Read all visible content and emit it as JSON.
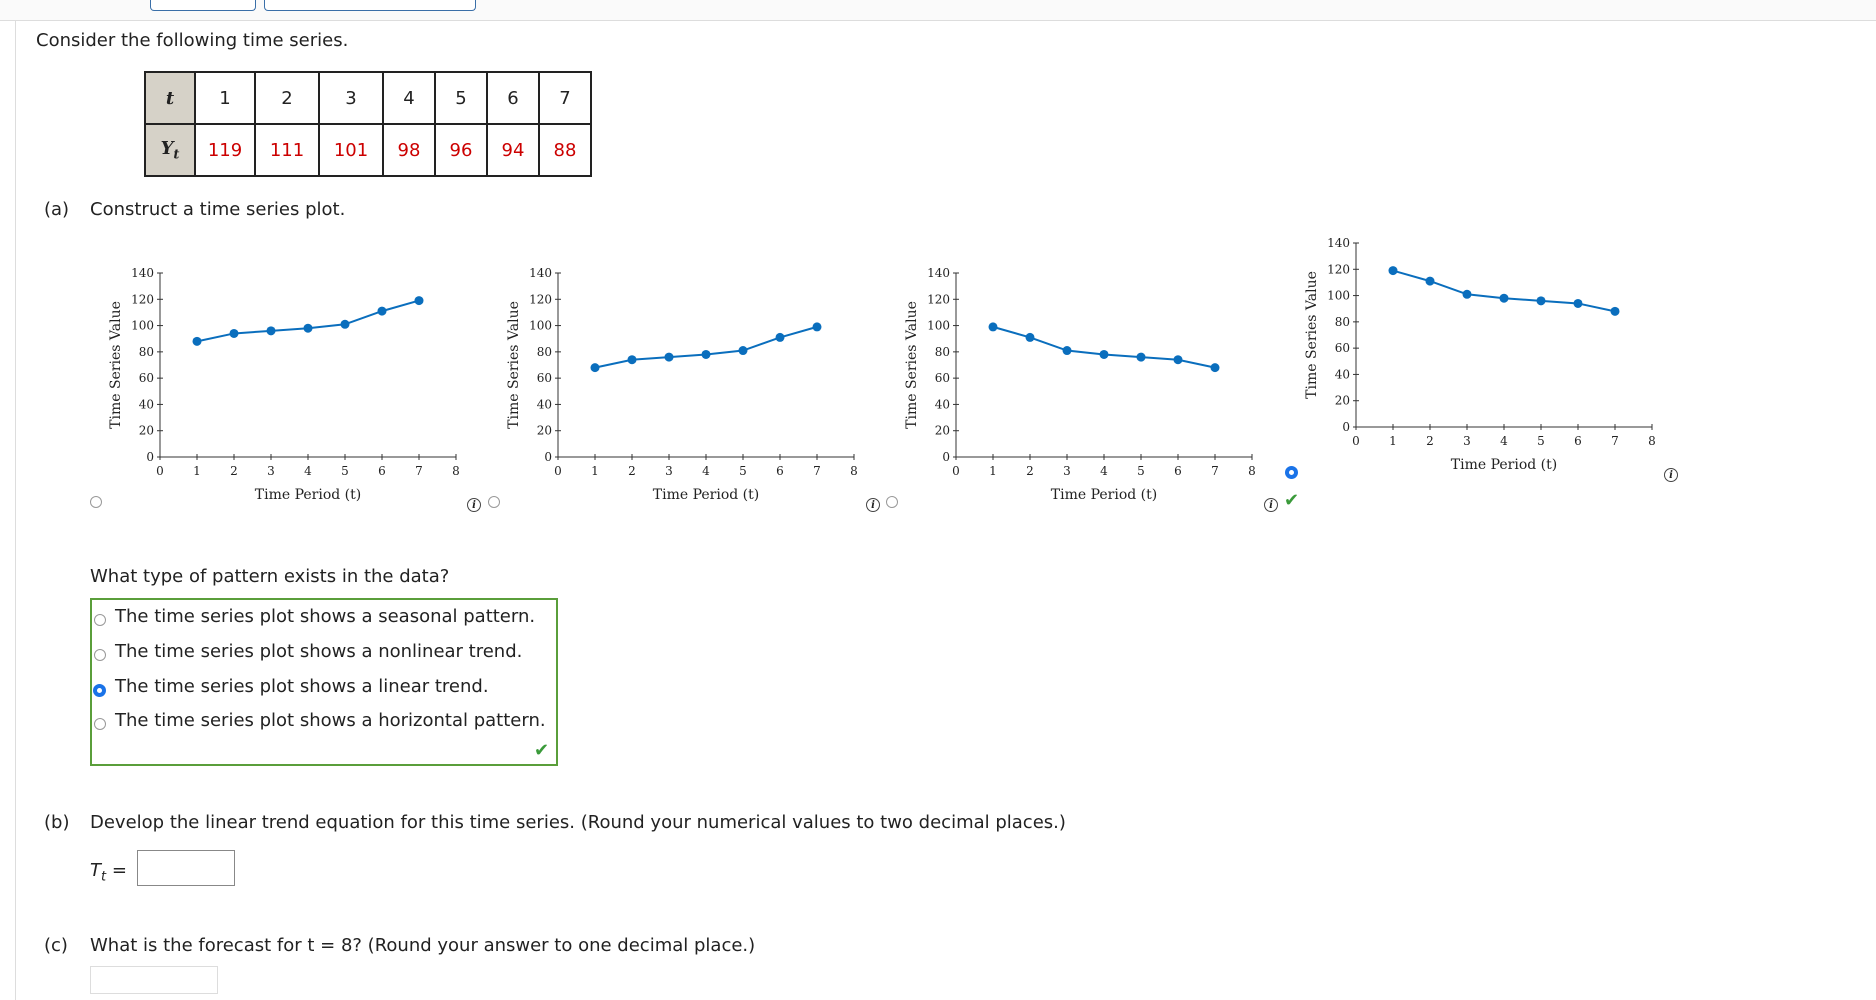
{
  "intro": "Consider the following time series.",
  "table": {
    "t_label": "t",
    "y_label": "Y",
    "y_sub": "t",
    "t_values": [
      "1",
      "2",
      "3",
      "4",
      "5",
      "6",
      "7"
    ],
    "y_values": [
      "119",
      "111",
      "101",
      "98",
      "96",
      "94",
      "88"
    ]
  },
  "part_a": {
    "letter": "(a)",
    "text": "Construct a time series plot."
  },
  "chart_data": [
    {
      "type": "line",
      "x": [
        1,
        2,
        3,
        4,
        5,
        6,
        7
      ],
      "values": [
        88,
        94,
        96,
        98,
        101,
        111,
        119
      ],
      "xlim": [
        0,
        8
      ],
      "ylim": [
        0,
        140
      ],
      "xticks": [
        0,
        1,
        2,
        3,
        4,
        5,
        6,
        7,
        8
      ],
      "yticks": [
        0,
        20,
        40,
        60,
        80,
        100,
        120,
        140
      ],
      "xlabel": "Time Period (t)",
      "ylabel": "Time Series Value",
      "selected": false
    },
    {
      "type": "line",
      "x": [
        1,
        2,
        3,
        4,
        5,
        6,
        7
      ],
      "values": [
        68,
        74,
        76,
        78,
        81,
        91,
        99
      ],
      "xlim": [
        0,
        8
      ],
      "ylim": [
        0,
        140
      ],
      "xticks": [
        0,
        1,
        2,
        3,
        4,
        5,
        6,
        7,
        8
      ],
      "yticks": [
        0,
        20,
        40,
        60,
        80,
        100,
        120,
        140
      ],
      "xlabel": "Time Period (t)",
      "ylabel": "Time Series Value",
      "selected": false
    },
    {
      "type": "line",
      "x": [
        1,
        2,
        3,
        4,
        5,
        6,
        7
      ],
      "values": [
        99,
        91,
        81,
        78,
        76,
        74,
        68
      ],
      "xlim": [
        0,
        8
      ],
      "ylim": [
        0,
        140
      ],
      "xticks": [
        0,
        1,
        2,
        3,
        4,
        5,
        6,
        7,
        8
      ],
      "yticks": [
        0,
        20,
        40,
        60,
        80,
        100,
        120,
        140
      ],
      "xlabel": "Time Period (t)",
      "ylabel": "Time Series Value",
      "selected": false
    },
    {
      "type": "line",
      "x": [
        1,
        2,
        3,
        4,
        5,
        6,
        7
      ],
      "values": [
        119,
        111,
        101,
        98,
        96,
        94,
        88
      ],
      "xlim": [
        0,
        8
      ],
      "ylim": [
        0,
        140
      ],
      "xticks": [
        0,
        1,
        2,
        3,
        4,
        5,
        6,
        7,
        8
      ],
      "yticks": [
        0,
        20,
        40,
        60,
        80,
        100,
        120,
        140
      ],
      "xlabel": "Time Period (t)",
      "ylabel": "Time Series Value",
      "selected": true
    }
  ],
  "pattern": {
    "question": "What type of pattern exists in the data?",
    "options": [
      "The time series plot shows a seasonal pattern.",
      "The time series plot shows a nonlinear trend.",
      "The time series plot shows a linear trend.",
      "The time series plot shows a horizontal pattern."
    ],
    "selected_index": 2
  },
  "part_b": {
    "letter": "(b)",
    "text": "Develop the linear trend equation for this time series. (Round your numerical values to two decimal places.)",
    "lhs": "T",
    "lhs_sub": "t",
    "equals": "=",
    "input_value": ""
  },
  "part_c": {
    "letter": "(c)",
    "text": "What is the forecast for t = 8? (Round your answer to one decimal place.)",
    "input_value": ""
  },
  "icons": {
    "info": "info-icon",
    "check": "checkmark-icon"
  },
  "colors": {
    "accent": "#1a73e8",
    "line": "#0a6ebd",
    "correct": "#5a9e3a",
    "value_red": "#c00000"
  }
}
